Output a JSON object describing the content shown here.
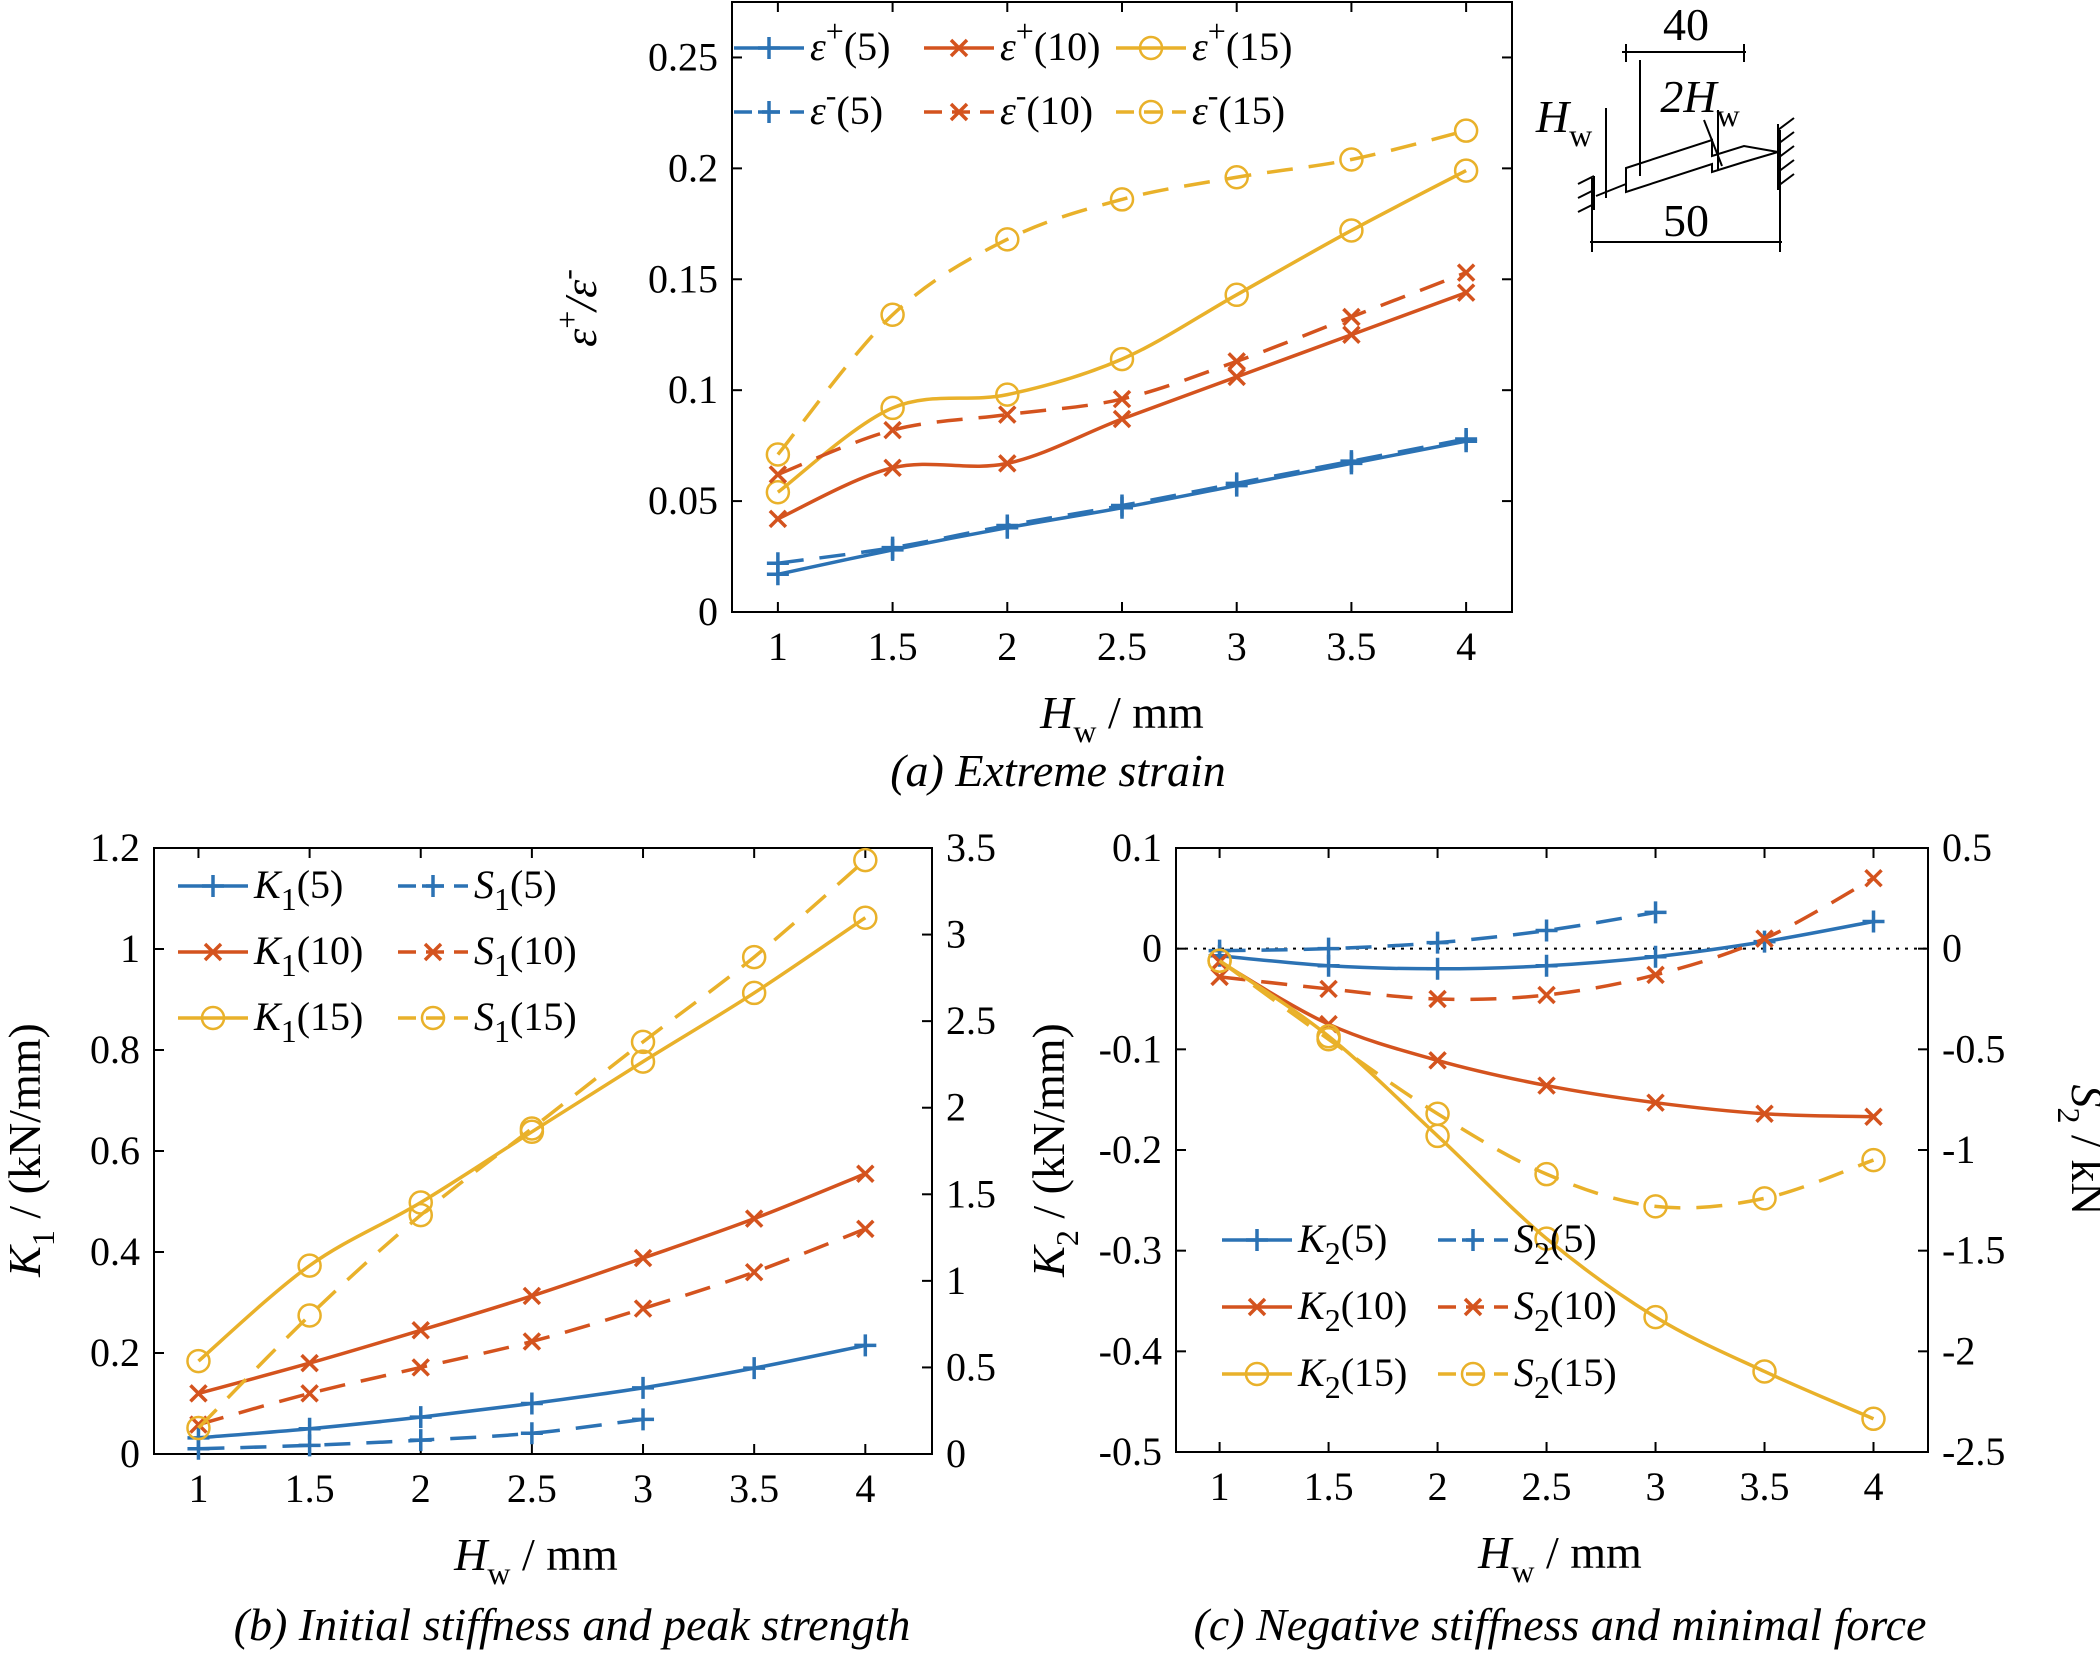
{
  "colors": {
    "blue": "#2b72b4",
    "orange": "#d4531e",
    "yellow": "#e9b12a"
  },
  "chart_data": [
    {
      "id": "a",
      "type": "line",
      "caption": "(a) Extreme strain",
      "xlabel": {
        "main": "H",
        "sub": "w",
        "unit": " / mm"
      },
      "ylabel": {
        "main": "ε",
        "sup1": "+",
        "sep": "/ε",
        "sup2": "-"
      },
      "xlim": [
        0.8,
        4.2
      ],
      "ylim": [
        0,
        0.275
      ],
      "xticks": [
        1,
        1.5,
        2,
        2.5,
        3,
        3.5,
        4
      ],
      "xtick_labels": [
        "1",
        "1.5",
        "2",
        "2.5",
        "3",
        "3.5",
        "4"
      ],
      "yticks": [
        0,
        0.05,
        0.1,
        0.15,
        0.2,
        0.25
      ],
      "ytick_labels": [
        "0",
        "0.05",
        "0.1",
        "0.15",
        "0.2",
        "0.25"
      ],
      "legend_position": "top-left",
      "series": [
        {
          "name": "ε⁺(5)",
          "sym": "ε",
          "sup": "+",
          "arg": "(5)",
          "color": "blue",
          "marker": "plus",
          "dash": false,
          "x": [
            1,
            1.5,
            2,
            2.5,
            3,
            3.5,
            4
          ],
          "values": [
            0.017,
            0.028,
            0.038,
            0.047,
            0.057,
            0.067,
            0.077
          ]
        },
        {
          "name": "ε⁺(10)",
          "sym": "ε",
          "sup": "+",
          "arg": "(10)",
          "color": "orange",
          "marker": "cross",
          "dash": false,
          "x": [
            1,
            1.5,
            2,
            2.5,
            3,
            3.5,
            4
          ],
          "values": [
            0.042,
            0.065,
            0.067,
            0.087,
            0.106,
            0.125,
            0.144
          ]
        },
        {
          "name": "ε⁺(15)",
          "sym": "ε",
          "sup": "+",
          "arg": "(15)",
          "color": "yellow",
          "marker": "circle",
          "dash": false,
          "x": [
            1,
            1.5,
            2,
            2.5,
            3,
            3.5,
            4
          ],
          "values": [
            0.054,
            0.092,
            0.098,
            0.114,
            0.143,
            0.172,
            0.199
          ]
        },
        {
          "name": "ε⁻(5)",
          "sym": "ε",
          "sup": "-",
          "arg": "(5)",
          "color": "blue",
          "marker": "plus",
          "dash": true,
          "x": [
            1,
            1.5,
            2,
            2.5,
            3,
            3.5,
            4
          ],
          "values": [
            0.022,
            0.029,
            0.039,
            0.048,
            0.058,
            0.068,
            0.078
          ]
        },
        {
          "name": "ε⁻(10)",
          "sym": "ε",
          "sup": "-",
          "arg": "(10)",
          "color": "orange",
          "marker": "cross",
          "dash": true,
          "x": [
            1,
            1.5,
            2,
            2.5,
            3,
            3.5,
            4
          ],
          "values": [
            0.062,
            0.082,
            0.089,
            0.096,
            0.113,
            0.133,
            0.153
          ]
        },
        {
          "name": "ε⁻(15)",
          "sym": "ε",
          "sup": "-",
          "arg": "(15)",
          "color": "yellow",
          "marker": "circle",
          "dash": true,
          "x": [
            1,
            1.5,
            2,
            2.5,
            3,
            3.5,
            4
          ],
          "values": [
            0.071,
            0.134,
            0.168,
            0.186,
            0.196,
            0.204,
            0.217
          ]
        }
      ]
    },
    {
      "id": "b",
      "type": "line",
      "caption": "(b) Initial stiffness and peak strength",
      "xlabel": {
        "main": "H",
        "sub": "w",
        "unit": " / mm"
      },
      "ylabel": {
        "main": "K",
        "sub": "1",
        "unit": " / (kN/mm)"
      },
      "xlim": [
        0.8,
        4.3
      ],
      "ylim": [
        0,
        1.2
      ],
      "ylim_right": [
        0,
        3.5
      ],
      "xticks": [
        1,
        1.5,
        2,
        2.5,
        3,
        3.5,
        4
      ],
      "xtick_labels": [
        "1",
        "1.5",
        "2",
        "2.5",
        "3",
        "3.5",
        "4"
      ],
      "yticks": [
        0,
        0.2,
        0.4,
        0.6,
        0.8,
        1,
        1.2
      ],
      "ytick_labels": [
        "0",
        "0.2",
        "0.4",
        "0.6",
        "0.8",
        "1",
        "1.2"
      ],
      "yticks_right": [
        0,
        0.5,
        1,
        1.5,
        2,
        2.5,
        3,
        3.5
      ],
      "ytick_labels_right": [
        "0",
        "0.5",
        "1",
        "1.5",
        "2",
        "2.5",
        "3",
        "3.5"
      ],
      "legend_position": "top-left",
      "series": [
        {
          "name": "K1(5)",
          "sym": "K",
          "sub": "1",
          "arg": "(5)",
          "color": "blue",
          "marker": "plus",
          "dash": false,
          "axis": "left",
          "x": [
            1,
            1.5,
            2,
            2.5,
            3,
            3.5,
            4
          ],
          "values": [
            0.032,
            0.05,
            0.073,
            0.1,
            0.131,
            0.17,
            0.215
          ]
        },
        {
          "name": "S1(5)",
          "sym": "S",
          "sub": "1",
          "arg": "(5)",
          "color": "blue",
          "marker": "plus",
          "dash": true,
          "axis": "right",
          "x": [
            1,
            1.5,
            2,
            2.5,
            3
          ],
          "values": [
            0.03,
            0.05,
            0.08,
            0.12,
            0.2
          ]
        },
        {
          "name": "K1(10)",
          "sym": "K",
          "sub": "1",
          "arg": "(10)",
          "color": "orange",
          "marker": "cross",
          "dash": false,
          "axis": "left",
          "x": [
            1,
            1.5,
            2,
            2.5,
            3,
            3.5,
            4
          ],
          "values": [
            0.12,
            0.18,
            0.245,
            0.313,
            0.388,
            0.466,
            0.555
          ]
        },
        {
          "name": "S1(10)",
          "sym": "S",
          "sub": "1",
          "arg": "(10)",
          "color": "orange",
          "marker": "cross",
          "dash": true,
          "axis": "right",
          "x": [
            1,
            1.5,
            2,
            2.5,
            3,
            3.5,
            4
          ],
          "values": [
            0.17,
            0.35,
            0.5,
            0.65,
            0.84,
            1.05,
            1.3
          ]
        },
        {
          "name": "K1(15)",
          "sym": "K",
          "sub": "1",
          "arg": "(15)",
          "color": "yellow",
          "marker": "circle",
          "dash": false,
          "axis": "left",
          "x": [
            1,
            1.5,
            2,
            2.5,
            3,
            3.5,
            4
          ],
          "values": [
            0.184,
            0.373,
            0.498,
            0.638,
            0.777,
            0.913,
            1.062
          ]
        },
        {
          "name": "S1(15)",
          "sym": "S",
          "sub": "1",
          "arg": "(15)",
          "color": "yellow",
          "marker": "circle",
          "dash": true,
          "axis": "right",
          "x": [
            1,
            1.5,
            2,
            2.5,
            3,
            3.5,
            4
          ],
          "values": [
            0.15,
            0.8,
            1.38,
            1.88,
            2.38,
            2.87,
            3.43
          ]
        }
      ]
    },
    {
      "id": "c",
      "type": "line",
      "caption": "(c) Negative stiffness and minimal force",
      "xlabel": {
        "main": "H",
        "sub": "w",
        "unit": " / mm"
      },
      "ylabel": {
        "main": "K",
        "sub": "2",
        "unit": " / (kN/mm)"
      },
      "ylabel_right": {
        "main": "S",
        "sub": "2",
        "unit": " / kN"
      },
      "xlim": [
        0.8,
        4.25
      ],
      "ylim": [
        -0.5,
        0.1
      ],
      "ylim_right": [
        -2.5,
        0.5
      ],
      "xticks": [
        1,
        1.5,
        2,
        2.5,
        3,
        3.5,
        4
      ],
      "xtick_labels": [
        "1",
        "1.5",
        "2",
        "2.5",
        "3",
        "3.5",
        "4"
      ],
      "yticks": [
        -0.5,
        -0.4,
        -0.3,
        -0.2,
        -0.1,
        0,
        0.1
      ],
      "ytick_labels": [
        "-0.5",
        "-0.4",
        "-0.3",
        "-0.2",
        "-0.1",
        "0",
        "0.1"
      ],
      "yticks_right": [
        -2.5,
        -2,
        -1.5,
        -1,
        -0.5,
        0,
        0.5
      ],
      "ytick_labels_right": [
        "-2.5",
        "-2",
        "-1.5",
        "-1",
        "-0.5",
        "0",
        "0.5"
      ],
      "zero_line": true,
      "legend_position": "bottom-left",
      "series": [
        {
          "name": "K2(5)",
          "sym": "K",
          "sub": "2",
          "arg": "(5)",
          "color": "blue",
          "marker": "plus",
          "dash": false,
          "axis": "left",
          "x": [
            1,
            1.5,
            2,
            2.5,
            3,
            3.5,
            4
          ],
          "values": [
            -0.007,
            -0.017,
            -0.02,
            -0.017,
            -0.008,
            0.007,
            0.027
          ]
        },
        {
          "name": "S2(5)",
          "sym": "S",
          "sub": "2",
          "arg": "(5)",
          "color": "blue",
          "marker": "plus",
          "dash": true,
          "axis": "right",
          "x": [
            1,
            1.5,
            2,
            2.5,
            3
          ],
          "values": [
            -0.01,
            0.0,
            0.03,
            0.09,
            0.18
          ]
        },
        {
          "name": "K2(10)",
          "sym": "K",
          "sub": "2",
          "arg": "(10)",
          "color": "orange",
          "marker": "cross",
          "dash": false,
          "axis": "left",
          "x": [
            1,
            1.5,
            2,
            2.5,
            3,
            3.5,
            4
          ],
          "values": [
            -0.013,
            -0.075,
            -0.111,
            -0.136,
            -0.153,
            -0.164,
            -0.167
          ]
        },
        {
          "name": "S2(10)",
          "sym": "S",
          "sub": "2",
          "arg": "(10)",
          "color": "orange",
          "marker": "cross",
          "dash": true,
          "axis": "right",
          "x": [
            1,
            1.5,
            2,
            2.5,
            3,
            3.5,
            4
          ],
          "values": [
            -0.14,
            -0.2,
            -0.25,
            -0.23,
            -0.13,
            0.05,
            0.35
          ]
        },
        {
          "name": "K2(15)",
          "sym": "K",
          "sub": "2",
          "arg": "(15)",
          "color": "yellow",
          "marker": "circle",
          "dash": false,
          "axis": "left",
          "x": [
            1,
            1.5,
            2,
            2.5,
            3,
            3.5,
            4
          ],
          "values": [
            -0.012,
            -0.087,
            -0.186,
            -0.288,
            -0.366,
            -0.42,
            -0.467
          ]
        },
        {
          "name": "S2(15)",
          "sym": "S",
          "sub": "2",
          "arg": "(15)",
          "color": "yellow",
          "marker": "circle",
          "dash": true,
          "axis": "right",
          "x": [
            1,
            1.5,
            2,
            2.5,
            3,
            3.5,
            4
          ],
          "values": [
            -0.06,
            -0.45,
            -0.82,
            -1.12,
            -1.28,
            -1.24,
            -1.05
          ]
        }
      ]
    }
  ],
  "schematic": {
    "dim_top": "40",
    "dim_mid": "2H",
    "dim_mid_sub": "w",
    "dim_left": "H",
    "dim_left_sub": "w",
    "dim_bottom": "50"
  }
}
